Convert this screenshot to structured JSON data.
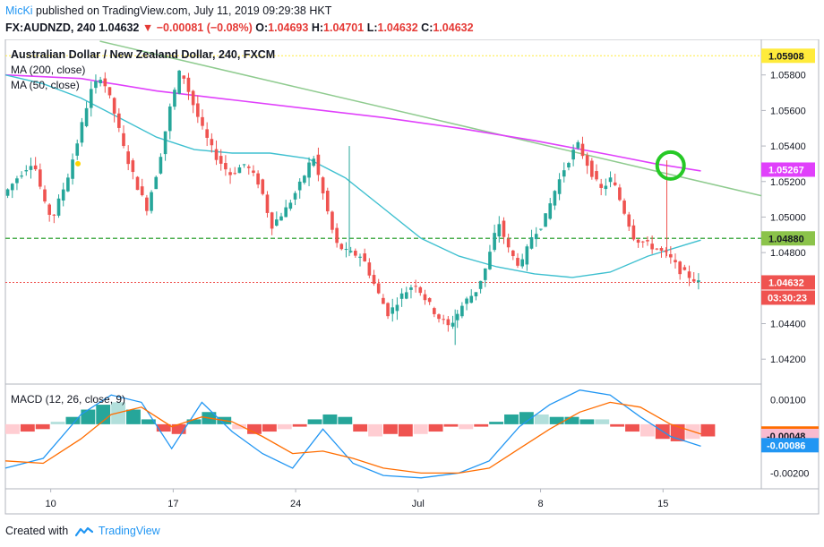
{
  "header": {
    "author": "MicKi",
    "publish_text": "published on TradingView.com, July 11, 2019 09:29:38 HKT",
    "symbol": "FX:AUDNZD, 240",
    "last": "1.04632",
    "change": "−0.00081 (−0.08%)",
    "o_label": "O:",
    "o_value": "1.04693",
    "h_label": "H:",
    "h_value": "1.04701",
    "l_label": "L:",
    "l_value": "1.04632",
    "c_label": "C:",
    "c_value": "1.04632"
  },
  "main_pane": {
    "title": "Australian Dollar / New Zealand Dollar, 240, FXCM",
    "ma200_label": "MA (200, close)",
    "ma50_label": "MA (50, close)"
  },
  "macd_pane": {
    "title": "MACD (12, 26, close, 9)"
  },
  "footer": {
    "created_with": "Created with",
    "brand": "TradingView"
  },
  "colors": {
    "up": "#26a69a",
    "down": "#ef5350",
    "ma200": "#e040fb",
    "ma50": "#3fc0d0",
    "trendline": "#8fcb8f",
    "support": "#4caf50",
    "resistance": "#ffeb3b",
    "circle": "#26c926",
    "macd_line": "#2196f3",
    "signal_line": "#ff6d00"
  },
  "chart_data": [
    {
      "type": "candlestick",
      "title": "Australian Dollar / New Zealand Dollar, 240, FXCM",
      "x_ticks": [
        "10",
        "17",
        "24",
        "Jul",
        "8",
        "15"
      ],
      "y_ticks": [
        "1.05800",
        "1.05600",
        "1.05400",
        "1.05200",
        "1.05000",
        "1.04800",
        "1.04400",
        "1.04200"
      ],
      "ylim": [
        1.0408,
        1.0598
      ],
      "price_labels": [
        {
          "value": 1.05908,
          "text": "1.05908",
          "color": "#ffeb3b",
          "text_color": "#131722"
        },
        {
          "value": 1.05267,
          "text": "1.05267",
          "color": "#e040fb",
          "text_color": "#ffffff"
        },
        {
          "value": 1.0488,
          "text": "1.04880",
          "color": "#8bc34a",
          "text_color": "#131722"
        },
        {
          "value": 1.04632,
          "text": "1.04632",
          "color": "#ef5350",
          "text_color": "#ffffff"
        }
      ],
      "countdown": "03:30:23",
      "horizontal_lines": [
        {
          "value": 1.05908,
          "style": "dotted",
          "color": "#ffeb3b"
        },
        {
          "value": 1.0488,
          "style": "dashed",
          "color": "#4caf50"
        },
        {
          "value": 1.04632,
          "style": "dotted",
          "color": "#ef5350"
        }
      ],
      "trendline": {
        "from": [
          0.125,
          1.0599
        ],
        "to": [
          1.0,
          1.0512
        ]
      },
      "price_path": [
        [
          0,
          1.0512
        ],
        [
          0.02,
          1.0523
        ],
        [
          0.04,
          1.0532
        ],
        [
          0.055,
          1.0507
        ],
        [
          0.065,
          1.0499
        ],
        [
          0.085,
          1.0522
        ],
        [
          0.1,
          1.0545
        ],
        [
          0.115,
          1.057
        ],
        [
          0.13,
          1.058
        ],
        [
          0.145,
          1.0562
        ],
        [
          0.16,
          1.0538
        ],
        [
          0.175,
          1.052
        ],
        [
          0.19,
          1.0505
        ],
        [
          0.205,
          1.0528
        ],
        [
          0.22,
          1.056
        ],
        [
          0.235,
          1.0584
        ],
        [
          0.25,
          1.0565
        ],
        [
          0.265,
          1.0548
        ],
        [
          0.28,
          1.0535
        ],
        [
          0.3,
          1.0524
        ],
        [
          0.32,
          1.053
        ],
        [
          0.34,
          1.0518
        ],
        [
          0.355,
          1.0495
        ],
        [
          0.375,
          1.0505
        ],
        [
          0.395,
          1.052
        ],
        [
          0.41,
          1.0535
        ],
        [
          0.425,
          1.051
        ],
        [
          0.44,
          1.0485
        ],
        [
          0.455,
          1.048
        ],
        [
          0.475,
          1.0478
        ],
        [
          0.495,
          1.0458
        ],
        [
          0.51,
          1.0445
        ],
        [
          0.525,
          1.0455
        ],
        [
          0.545,
          1.0463
        ],
        [
          0.56,
          1.0453
        ],
        [
          0.575,
          1.0444
        ],
        [
          0.59,
          1.0438
        ],
        [
          0.61,
          1.0452
        ],
        [
          0.625,
          1.0458
        ],
        [
          0.64,
          1.0473
        ],
        [
          0.655,
          1.0498
        ],
        [
          0.67,
          1.048
        ],
        [
          0.685,
          1.0472
        ],
        [
          0.7,
          1.049
        ],
        [
          0.715,
          1.0497
        ],
        [
          0.73,
          1.0515
        ],
        [
          0.745,
          1.053
        ],
        [
          0.76,
          1.0541
        ],
        [
          0.775,
          1.0528
        ],
        [
          0.79,
          1.0515
        ],
        [
          0.805,
          1.0522
        ],
        [
          0.82,
          1.0505
        ],
        [
          0.835,
          1.0488
        ],
        [
          0.85,
          1.0485
        ],
        [
          0.865,
          1.0482
        ],
        [
          0.88,
          1.0478
        ],
        [
          0.895,
          1.047
        ],
        [
          0.91,
          1.0466
        ],
        [
          0.92,
          1.0463
        ]
      ],
      "series": [
        {
          "name": "MA (200, close)",
          "points": [
            [
              0,
              1.058
            ],
            [
              0.1,
              1.0578
            ],
            [
              0.2,
              1.0571
            ],
            [
              0.3,
              1.0566
            ],
            [
              0.4,
              1.0561
            ],
            [
              0.5,
              1.0556
            ],
            [
              0.6,
              1.055
            ],
            [
              0.7,
              1.0543
            ],
            [
              0.8,
              1.0535
            ],
            [
              0.86,
              1.053
            ],
            [
              0.92,
              1.0526
            ]
          ]
        },
        {
          "name": "MA (50, close)",
          "points": [
            [
              0,
              1.058
            ],
            [
              0.05,
              1.0575
            ],
            [
              0.1,
              1.0567
            ],
            [
              0.15,
              1.0556
            ],
            [
              0.2,
              1.0545
            ],
            [
              0.25,
              1.0538
            ],
            [
              0.3,
              1.0536
            ],
            [
              0.35,
              1.0536
            ],
            [
              0.4,
              1.0533
            ],
            [
              0.45,
              1.0522
            ],
            [
              0.5,
              1.0505
            ],
            [
              0.55,
              1.0488
            ],
            [
              0.6,
              1.0478
            ],
            [
              0.65,
              1.0472
            ],
            [
              0.7,
              1.0468
            ],
            [
              0.75,
              1.0466
            ],
            [
              0.8,
              1.0469
            ],
            [
              0.85,
              1.0478
            ],
            [
              0.92,
              1.0487
            ]
          ]
        }
      ],
      "annotation": {
        "type": "circle",
        "at": [
          0.88,
          1.0529
        ],
        "color": "#26c926"
      },
      "marker": {
        "at": [
          0.096,
          1.053
        ],
        "color": "#ffd600"
      }
    },
    {
      "type": "bar+line",
      "title": "MACD (12, 26, close, 9)",
      "y_ticks": [
        "0.00100",
        "-0.00200"
      ],
      "ylim": [
        -0.0025,
        0.0015
      ],
      "value_labels": [
        {
          "value": -0.00038,
          "text": "-0.00038",
          "color": "#ff6d00",
          "text_color": "#ffffff"
        },
        {
          "value": -0.00048,
          "text": "-0.00048",
          "color": "#f8bbd0",
          "text_color": "#131722"
        },
        {
          "value": -0.00086,
          "text": "-0.00086",
          "color": "#2196f3",
          "text_color": "#ffffff"
        }
      ],
      "histogram": [
        [
          0,
          -0.0004
        ],
        [
          0.02,
          -0.0003
        ],
        [
          0.04,
          -0.0002
        ],
        [
          0.06,
          0.0001
        ],
        [
          0.08,
          0.0003
        ],
        [
          0.1,
          0.0006
        ],
        [
          0.12,
          0.0008
        ],
        [
          0.14,
          0.0009
        ],
        [
          0.16,
          0.0006
        ],
        [
          0.18,
          0.0002
        ],
        [
          0.2,
          -0.0003
        ],
        [
          0.22,
          -0.0004
        ],
        [
          0.24,
          0.0002
        ],
        [
          0.26,
          0.0005
        ],
        [
          0.28,
          0.0003
        ],
        [
          0.3,
          -0.0002
        ],
        [
          0.32,
          -0.0004
        ],
        [
          0.34,
          -0.0003
        ],
        [
          0.36,
          -0.0002
        ],
        [
          0.38,
          -0.0001
        ],
        [
          0.4,
          0.0002
        ],
        [
          0.42,
          0.0004
        ],
        [
          0.44,
          0.0003
        ],
        [
          0.46,
          -0.0003
        ],
        [
          0.48,
          -0.0005
        ],
        [
          0.5,
          -0.0004
        ],
        [
          0.52,
          -0.0005
        ],
        [
          0.54,
          -0.0004
        ],
        [
          0.56,
          -0.0003
        ],
        [
          0.58,
          -0.0001
        ],
        [
          0.6,
          -0.0002
        ],
        [
          0.62,
          -0.0001
        ],
        [
          0.64,
          0.0001
        ],
        [
          0.66,
          0.0004
        ],
        [
          0.68,
          0.0005
        ],
        [
          0.7,
          0.0004
        ],
        [
          0.72,
          0.0003
        ],
        [
          0.74,
          0.0003
        ],
        [
          0.76,
          0.0002
        ],
        [
          0.78,
          0.0002
        ],
        [
          0.8,
          -0.0001
        ],
        [
          0.82,
          -0.0003
        ],
        [
          0.84,
          -0.0005
        ],
        [
          0.86,
          -0.0006
        ],
        [
          0.88,
          -0.0007
        ],
        [
          0.9,
          -0.0006
        ],
        [
          0.92,
          -0.0005
        ]
      ],
      "series": [
        {
          "name": "MACD",
          "points": [
            [
              0,
              -0.0018
            ],
            [
              0.05,
              -0.0014
            ],
            [
              0.1,
              0.0004
            ],
            [
              0.14,
              0.0012
            ],
            [
              0.18,
              0.0009
            ],
            [
              0.22,
              -0.001
            ],
            [
              0.26,
              0.0009
            ],
            [
              0.3,
              -0.0003
            ],
            [
              0.34,
              -0.0012
            ],
            [
              0.38,
              -0.0018
            ],
            [
              0.42,
              -0.0002
            ],
            [
              0.46,
              -0.0016
            ],
            [
              0.5,
              -0.0021
            ],
            [
              0.55,
              -0.0022
            ],
            [
              0.6,
              -0.002
            ],
            [
              0.64,
              -0.0015
            ],
            [
              0.68,
              -0.0001
            ],
            [
              0.72,
              0.0008
            ],
            [
              0.76,
              0.0014
            ],
            [
              0.8,
              0.0012
            ],
            [
              0.84,
              0.0003
            ],
            [
              0.88,
              -0.0005
            ],
            [
              0.92,
              -0.0009
            ]
          ]
        },
        {
          "name": "Signal",
          "points": [
            [
              0,
              -0.0015
            ],
            [
              0.05,
              -0.0016
            ],
            [
              0.1,
              -0.0006
            ],
            [
              0.14,
              0.0004
            ],
            [
              0.18,
              0.0007
            ],
            [
              0.22,
              -0.0001
            ],
            [
              0.26,
              0.0003
            ],
            [
              0.3,
              0.0001
            ],
            [
              0.34,
              -0.0005
            ],
            [
              0.38,
              -0.0012
            ],
            [
              0.42,
              -0.0011
            ],
            [
              0.46,
              -0.0014
            ],
            [
              0.5,
              -0.0018
            ],
            [
              0.55,
              -0.002
            ],
            [
              0.6,
              -0.002
            ],
            [
              0.64,
              -0.0018
            ],
            [
              0.68,
              -0.001
            ],
            [
              0.72,
              -0.0002
            ],
            [
              0.76,
              0.0005
            ],
            [
              0.8,
              0.0009
            ],
            [
              0.84,
              0.0007
            ],
            [
              0.88,
              0.0
            ],
            [
              0.92,
              -0.0004
            ]
          ]
        }
      ]
    }
  ]
}
